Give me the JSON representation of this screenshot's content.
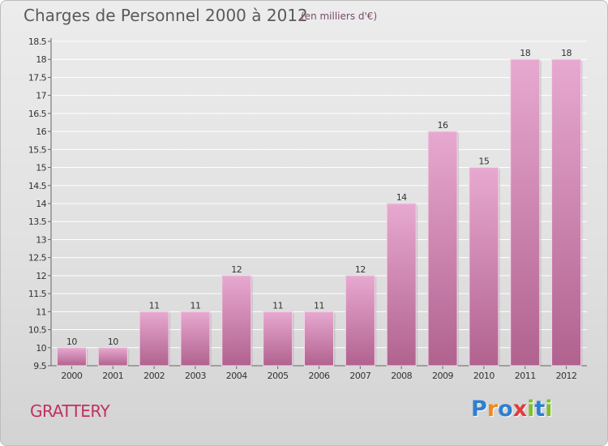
{
  "title": "Charges de Personnel 2000 à 2012",
  "subtitle": "(en milliers d'€)",
  "commune": "GRATTERY",
  "brand": {
    "text": "Proxiti",
    "letter_colors": [
      "#2e7fd1",
      "#f08a1c",
      "#2e7fd1",
      "#e23b3b",
      "#7fbf2a",
      "#2e7fd1",
      "#7fbf2a"
    ]
  },
  "colors": {
    "bar_top": "#e7a9d0",
    "bar_bottom": "#b1628f",
    "title": "#5a5a5a",
    "commune": "#c2305f"
  },
  "chart_data": {
    "type": "bar",
    "title": "Charges de Personnel 2000 à 2012",
    "subtitle": "(en milliers d'€)",
    "categories": [
      "2000",
      "2001",
      "2002",
      "2003",
      "2004",
      "2005",
      "2006",
      "2007",
      "2008",
      "2009",
      "2010",
      "2011",
      "2012"
    ],
    "values": [
      10,
      10,
      11,
      11,
      12,
      11,
      11,
      12,
      14,
      16,
      15,
      18,
      18
    ],
    "ylim": [
      9.5,
      18.5
    ],
    "yticks": [
      "9.5",
      "10",
      "10.5",
      "11",
      "11.5",
      "12",
      "12.5",
      "13",
      "13.5",
      "14",
      "14.5",
      "15",
      "15.5",
      "16",
      "16.5",
      "17",
      "17.5",
      "18",
      "18.5"
    ],
    "grid": true,
    "legend": "none"
  }
}
